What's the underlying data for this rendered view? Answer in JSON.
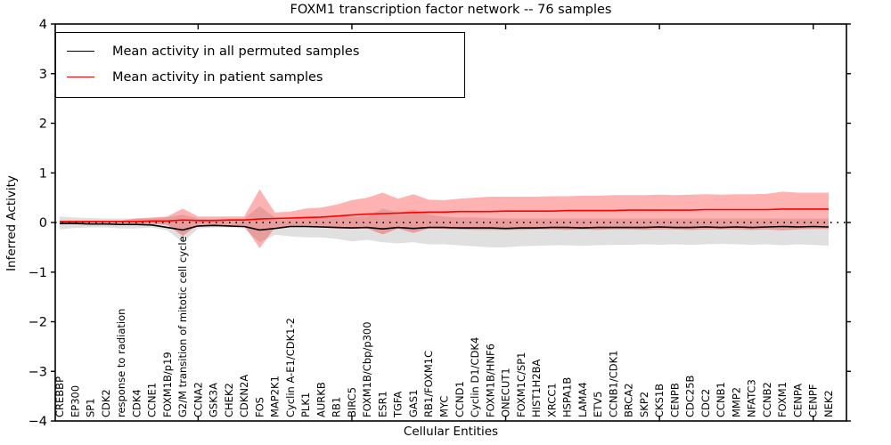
{
  "title": "FOXM1 transcription factor network -- 76 samples",
  "legend": {
    "items": [
      {
        "label": "Mean activity in all permuted samples",
        "color": "#000000"
      },
      {
        "label": "Mean activity in patient samples",
        "color": "#ff0000"
      }
    ]
  },
  "chart_data": {
    "type": "line",
    "title": "FOXM1 transcription factor network -- 76 samples",
    "xlabel": "Cellular Entities",
    "ylabel": "Inferred Activity",
    "ylim": [
      -4,
      4
    ],
    "yticks": [
      -4,
      -3,
      -2,
      -1,
      0,
      1,
      2,
      3,
      4
    ],
    "grid": false,
    "legend_position": "upper left",
    "zero_line": {
      "y": 0,
      "style": "dotted",
      "color": "#000000"
    },
    "top_ticks_at_index": [
      9,
      19,
      29,
      39,
      49
    ],
    "categories": [
      "CREBBP",
      "EP300",
      "SP1",
      "CDK2",
      "response to radiation",
      "CDK4",
      "CCNE1",
      "FOXM1B/p19",
      "G2/M transition of mitotic cell cycle",
      "CCNA2",
      "GSK3A",
      "CHEK2",
      "CDKN2A",
      "FOS",
      "MAP2K1",
      "Cyclin A-E1/CDK1-2",
      "PLK1",
      "AURKB",
      "RB1",
      "BIRC5",
      "FOXM1B/Cbp/p300",
      "ESR1",
      "TGFA",
      "GAS1",
      "RB1/FOXM1C",
      "MYC",
      "CCND1",
      "Cyclin D1/CDK4",
      "FOXM1B/HNF6",
      "ONECUT1",
      "FOXM1C/SP1",
      "HIST1H2BA",
      "XRCC1",
      "HSPA1B",
      "LAMA4",
      "ETV5",
      "CCNB1/CDK1",
      "BRCA2",
      "SKP2",
      "CKS1B",
      "CENPB",
      "CDC25B",
      "CDC2",
      "CCNB1",
      "MMP2",
      "NFATC3",
      "CCNB2",
      "FOXM1",
      "CENPA",
      "CENPF",
      "NEK2"
    ],
    "series": [
      {
        "name": "Mean activity in all permuted samples",
        "color": "#000000",
        "values": [
          -0.02,
          -0.02,
          -0.03,
          -0.03,
          -0.04,
          -0.04,
          -0.05,
          -0.1,
          -0.15,
          -0.07,
          -0.06,
          -0.07,
          -0.08,
          -0.15,
          -0.12,
          -0.08,
          -0.08,
          -0.09,
          -0.1,
          -0.11,
          -0.1,
          -0.13,
          -0.1,
          -0.12,
          -0.1,
          -0.1,
          -0.11,
          -0.11,
          -0.11,
          -0.12,
          -0.11,
          -0.11,
          -0.1,
          -0.1,
          -0.11,
          -0.1,
          -0.1,
          -0.1,
          -0.1,
          -0.09,
          -0.1,
          -0.1,
          -0.09,
          -0.1,
          -0.09,
          -0.1,
          -0.09,
          -0.08,
          -0.09,
          -0.08,
          -0.09
        ]
      },
      {
        "name": "Mean activity in patient samples",
        "color": "#ff0000",
        "values": [
          0.02,
          0.02,
          0.02,
          0.02,
          0.02,
          0.02,
          0.03,
          0.03,
          0.05,
          0.04,
          0.04,
          0.05,
          0.05,
          0.07,
          0.08,
          0.09,
          0.1,
          0.11,
          0.13,
          0.15,
          0.17,
          0.18,
          0.19,
          0.2,
          0.21,
          0.21,
          0.22,
          0.22,
          0.22,
          0.23,
          0.23,
          0.23,
          0.23,
          0.24,
          0.24,
          0.24,
          0.24,
          0.25,
          0.25,
          0.25,
          0.25,
          0.25,
          0.26,
          0.26,
          0.26,
          0.26,
          0.26,
          0.27,
          0.27,
          0.27,
          0.27
        ]
      }
    ],
    "bands": [
      {
        "name": "permuted samples range",
        "color": "#000000",
        "opacity": 0.12,
        "lower": [
          -0.14,
          -0.11,
          -0.1,
          -0.1,
          -0.12,
          -0.12,
          -0.1,
          -0.16,
          -0.4,
          -0.12,
          -0.1,
          -0.1,
          -0.12,
          -0.4,
          -0.25,
          -0.28,
          -0.3,
          -0.3,
          -0.33,
          -0.38,
          -0.35,
          -0.4,
          -0.42,
          -0.4,
          -0.44,
          -0.44,
          -0.46,
          -0.48,
          -0.5,
          -0.5,
          -0.48,
          -0.47,
          -0.46,
          -0.46,
          -0.47,
          -0.46,
          -0.45,
          -0.45,
          -0.44,
          -0.45,
          -0.44,
          -0.45,
          -0.44,
          -0.43,
          -0.44,
          -0.45,
          -0.44,
          -0.46,
          -0.44,
          -0.45,
          -0.47
        ],
        "upper": [
          0.12,
          0.1,
          0.09,
          0.08,
          0.08,
          0.08,
          0.08,
          0.1,
          0.16,
          0.08,
          0.07,
          0.07,
          0.08,
          0.33,
          0.1,
          0.1,
          0.1,
          0.1,
          0.12,
          0.12,
          0.12,
          0.28,
          0.2,
          0.26,
          0.16,
          0.12,
          0.1,
          0.1,
          0.09,
          0.08,
          0.08,
          0.08,
          0.08,
          0.08,
          0.08,
          0.08,
          0.08,
          0.08,
          0.08,
          0.08,
          0.08,
          0.08,
          0.08,
          0.08,
          0.08,
          0.08,
          0.08,
          0.08,
          0.08,
          0.08,
          0.08
        ]
      },
      {
        "name": "patient samples range",
        "color": "#ff0000",
        "opacity": 0.3,
        "lower": [
          -0.01,
          -0.01,
          -0.01,
          -0.01,
          -0.01,
          -0.02,
          -0.03,
          -0.05,
          -0.27,
          -0.05,
          -0.05,
          -0.05,
          -0.06,
          -0.52,
          -0.1,
          -0.08,
          -0.08,
          -0.1,
          -0.12,
          -0.12,
          -0.12,
          -0.24,
          -0.12,
          -0.21,
          -0.12,
          -0.13,
          -0.14,
          -0.15,
          -0.15,
          -0.15,
          -0.15,
          -0.14,
          -0.14,
          -0.15,
          -0.14,
          -0.15,
          -0.14,
          -0.14,
          -0.15,
          -0.14,
          -0.14,
          -0.15,
          -0.14,
          -0.14,
          -0.14,
          -0.15,
          -0.14,
          -0.16,
          -0.14,
          -0.13,
          -0.13
        ],
        "upper": [
          0.04,
          0.04,
          0.04,
          0.04,
          0.04,
          0.08,
          0.1,
          0.12,
          0.28,
          0.12,
          0.12,
          0.12,
          0.12,
          0.67,
          0.2,
          0.22,
          0.28,
          0.3,
          0.36,
          0.45,
          0.5,
          0.6,
          0.48,
          0.57,
          0.46,
          0.45,
          0.48,
          0.5,
          0.52,
          0.52,
          0.52,
          0.52,
          0.53,
          0.53,
          0.54,
          0.54,
          0.55,
          0.55,
          0.55,
          0.56,
          0.55,
          0.56,
          0.57,
          0.56,
          0.57,
          0.57,
          0.58,
          0.62,
          0.6,
          0.6,
          0.6
        ]
      }
    ]
  }
}
